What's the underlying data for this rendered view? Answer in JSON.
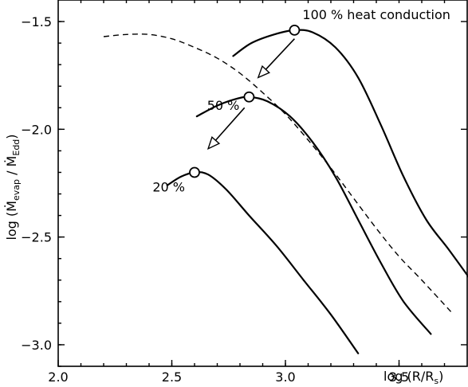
{
  "chart_data": {
    "type": "line",
    "xlabel": "log (R/R",
    "xlabel_sub": "s",
    "xlabel_close": ")",
    "ylabel_prefix": "log (",
    "ylabel_num_sym": "Ṁ",
    "ylabel_num_sub": "evap",
    "ylabel_sep": " / ",
    "ylabel_den_sym": "Ṁ",
    "ylabel_den_sub": "Edd",
    "ylabel_close": ")",
    "xlim": [
      2.0,
      3.8
    ],
    "ylim": [
      -3.1,
      -1.4
    ],
    "xticks": [
      2.0,
      2.5,
      3.0,
      3.5
    ],
    "xtick_labels": [
      "2.0",
      "2.5",
      "3.0",
      "3.5"
    ],
    "yticks": [
      -1.5,
      -2.0,
      -2.5,
      -3.0
    ],
    "ytick_labels": [
      "−1.5",
      "−2.0",
      "−2.5",
      "−3.0"
    ],
    "grid": false,
    "series": [
      {
        "style": "solid",
        "label": "100 % heat conduction",
        "x": [
          2.77,
          2.85,
          2.95,
          3.04,
          3.12,
          3.22,
          3.32,
          3.42,
          3.52,
          3.62,
          3.72,
          3.83
        ],
        "y": [
          -1.66,
          -1.6,
          -1.56,
          -1.54,
          -1.55,
          -1.62,
          -1.76,
          -1.98,
          -2.22,
          -2.42,
          -2.56,
          -2.72
        ],
        "peak": [
          3.04,
          -1.54
        ]
      },
      {
        "style": "solid",
        "label": "50 %",
        "x": [
          2.61,
          2.7,
          2.78,
          2.84,
          2.92,
          3.02,
          3.12,
          3.22,
          3.32,
          3.42,
          3.52,
          3.64
        ],
        "y": [
          -1.94,
          -1.89,
          -1.86,
          -1.85,
          -1.87,
          -1.94,
          -2.06,
          -2.22,
          -2.42,
          -2.62,
          -2.8,
          -2.95
        ],
        "peak": [
          2.84,
          -1.85
        ]
      },
      {
        "style": "solid",
        "label": "20 %",
        "x": [
          2.48,
          2.54,
          2.6,
          2.66,
          2.74,
          2.84,
          2.96,
          3.08,
          3.2,
          3.32
        ],
        "y": [
          -2.26,
          -2.22,
          -2.2,
          -2.21,
          -2.28,
          -2.4,
          -2.54,
          -2.7,
          -2.86,
          -3.04
        ],
        "peak": [
          2.6,
          -2.2
        ]
      },
      {
        "style": "dashed",
        "x": [
          2.2,
          2.3,
          2.4,
          2.5,
          2.6,
          2.7,
          2.8,
          2.9,
          3.0,
          3.1,
          3.2,
          3.3,
          3.4,
          3.5,
          3.6,
          3.74
        ],
        "y": [
          -1.57,
          -1.56,
          -1.56,
          -1.58,
          -1.62,
          -1.67,
          -1.74,
          -1.83,
          -1.93,
          -2.05,
          -2.18,
          -2.32,
          -2.46,
          -2.59,
          -2.7,
          -2.86
        ]
      }
    ],
    "arrows": [
      {
        "from": [
          3.04,
          -1.58
        ],
        "to": [
          2.88,
          -1.76
        ]
      },
      {
        "from": [
          2.82,
          -1.9
        ],
        "to": [
          2.66,
          -2.09
        ]
      }
    ]
  }
}
